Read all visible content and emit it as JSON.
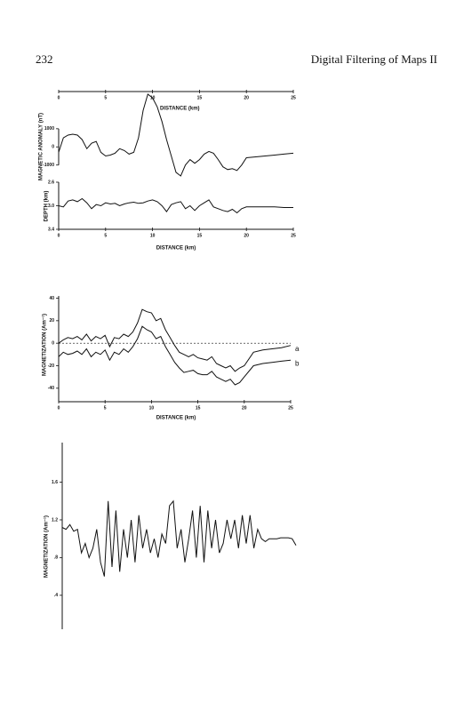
{
  "header": {
    "page_number": "232",
    "running_title": "Digital Filtering of Maps II"
  },
  "chart_data": [
    {
      "type": "line",
      "x_label": "DISTANCE (km)",
      "y_label": "MAGNETIC ANOMALY (nT)",
      "color": "#111111",
      "xlim": [
        0,
        25
      ],
      "xticks": [
        0,
        5,
        10,
        15,
        20,
        25
      ],
      "ylim": [
        -1700,
        3000
      ],
      "yticks": [
        -1000,
        0,
        1000
      ],
      "x": [
        0,
        0.5,
        1,
        1.5,
        2,
        2.5,
        3,
        3.5,
        4,
        4.5,
        5,
        5.5,
        6,
        6.5,
        7,
        7.5,
        8,
        8.5,
        9,
        9.5,
        10,
        10.5,
        11,
        11.5,
        12,
        12.5,
        13,
        13.5,
        14,
        14.5,
        15,
        15.5,
        16,
        16.5,
        17,
        17.5,
        18,
        18.5,
        19,
        19.5,
        20,
        21,
        22,
        23,
        24,
        25
      ],
      "values": [
        -300,
        500,
        650,
        700,
        650,
        400,
        -100,
        200,
        300,
        -300,
        -500,
        -450,
        -350,
        -100,
        -200,
        -400,
        -300,
        500,
        2000,
        2900,
        2700,
        2200,
        1400,
        400,
        -500,
        -1400,
        -1600,
        -1000,
        -700,
        -900,
        -700,
        -400,
        -250,
        -350,
        -700,
        -1100,
        -1250,
        -1200,
        -1300,
        -1000,
        -600,
        -550,
        -500,
        -450,
        -400,
        -350
      ]
    },
    {
      "type": "line",
      "x_label": "DISTANCE (km)",
      "y_label": "DEPTH (km)",
      "color": "#111111",
      "xlim": [
        0,
        25
      ],
      "xticks": [
        0,
        5,
        10,
        15,
        20,
        25
      ],
      "ylim": [
        3.4,
        2.6
      ],
      "yticks": [
        2.6,
        {
          "value": 3,
          "label": "3.0"
        },
        3.4
      ],
      "x": [
        0,
        0.5,
        1,
        1.5,
        2,
        2.5,
        3,
        3.5,
        4,
        4.5,
        5,
        5.5,
        6,
        6.5,
        7,
        7.5,
        8,
        8.5,
        9,
        9.5,
        10,
        10.5,
        11,
        11.5,
        12,
        12.5,
        13,
        13.5,
        14,
        14.5,
        15,
        15.5,
        16,
        16.5,
        17,
        17.5,
        18,
        18.5,
        19,
        19.5,
        20,
        21,
        22,
        23,
        24,
        25
      ],
      "values": [
        3.0,
        3.02,
        2.92,
        2.9,
        2.93,
        2.88,
        2.95,
        3.05,
        2.98,
        3.0,
        2.95,
        2.97,
        2.96,
        3.0,
        2.97,
        2.95,
        2.94,
        2.96,
        2.95,
        2.92,
        2.9,
        2.93,
        3.0,
        3.1,
        2.98,
        2.95,
        2.93,
        3.05,
        3.0,
        3.08,
        3.0,
        2.95,
        2.9,
        3.02,
        3.05,
        3.08,
        3.1,
        3.06,
        3.12,
        3.05,
        3.02,
        3.02,
        3.02,
        3.02,
        3.03,
        3.03
      ]
    },
    {
      "type": "line",
      "x_label": "DISTANCE (km)",
      "y_label": "MAGNETIZATION (Am⁻¹)",
      "zero_line": true,
      "xlim": [
        0,
        25
      ],
      "xticks": [
        0,
        5,
        10,
        15,
        20,
        25
      ],
      "ylim": [
        -52,
        42
      ],
      "yticks": [
        -40,
        -20,
        0,
        20,
        40
      ],
      "x": [
        0,
        0.5,
        1,
        1.5,
        2,
        2.5,
        3,
        3.5,
        4,
        4.5,
        5,
        5.5,
        6,
        6.5,
        7,
        7.5,
        8,
        8.5,
        9,
        9.5,
        10,
        10.5,
        11,
        11.5,
        12,
        12.5,
        13,
        13.5,
        14,
        14.5,
        15,
        15.5,
        16,
        16.5,
        17,
        17.5,
        18,
        18.5,
        19,
        19.5,
        20,
        21,
        22,
        23,
        24,
        25
      ],
      "series": [
        {
          "name": "a",
          "color": "#111111",
          "values": [
            0,
            3,
            5,
            4,
            6,
            3,
            8,
            2,
            6,
            4,
            7,
            -3,
            5,
            4,
            8,
            6,
            10,
            18,
            30,
            28,
            27,
            20,
            22,
            12,
            5,
            -2,
            -8,
            -10,
            -12,
            -10,
            -13,
            -14,
            -15,
            -12,
            -18,
            -20,
            -22,
            -20,
            -25,
            -22,
            -20,
            -8,
            -6,
            -5,
            -4,
            -2
          ]
        },
        {
          "name": "b",
          "color": "#111111",
          "values": [
            -12,
            -8,
            -10,
            -9,
            -7,
            -10,
            -5,
            -12,
            -8,
            -10,
            -6,
            -15,
            -8,
            -10,
            -5,
            -8,
            -3,
            4,
            15,
            12,
            10,
            4,
            6,
            -3,
            -10,
            -17,
            -22,
            -26,
            -25,
            -24,
            -27,
            -28,
            -28,
            -25,
            -30,
            -32,
            -34,
            -32,
            -37,
            -35,
            -30,
            -20,
            -18,
            -17,
            -16,
            -15
          ]
        }
      ]
    },
    {
      "type": "line",
      "y_label": "MAGNETIZATION (Am⁻¹)",
      "color": "#111111",
      "ylim": [
        0.04,
        2.02
      ],
      "yticks": [
        {
          "value": 0.4,
          "label": ".4"
        },
        {
          "value": 0.8,
          "label": ".8"
        },
        1.2,
        1.6
      ],
      "values": [
        1.12,
        1.1,
        1.15,
        1.08,
        1.1,
        0.85,
        0.95,
        0.8,
        0.9,
        1.1,
        0.75,
        0.6,
        1.4,
        0.7,
        1.3,
        0.65,
        1.1,
        0.8,
        1.2,
        0.75,
        1.25,
        0.9,
        1.1,
        0.85,
        1.0,
        0.8,
        1.05,
        0.95,
        1.35,
        1.4,
        0.9,
        1.1,
        0.75,
        1.0,
        1.3,
        0.8,
        1.35,
        0.75,
        1.3,
        0.9,
        1.2,
        0.85,
        0.95,
        1.2,
        1.0,
        1.2,
        0.9,
        1.25,
        0.95,
        1.25,
        0.9,
        1.1,
        1.0,
        0.97,
        1.0,
        1.0,
        1.0,
        1.01,
        1.01,
        1.01,
        1.0,
        0.93
      ]
    }
  ]
}
